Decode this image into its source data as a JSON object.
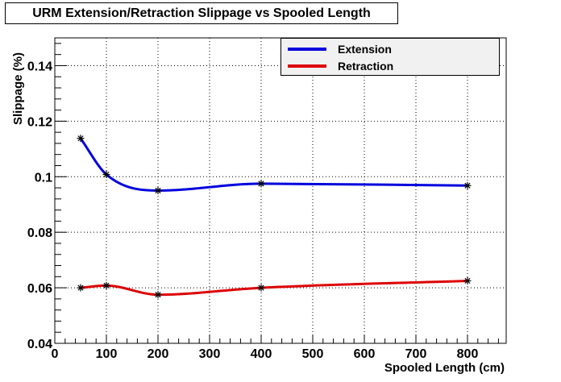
{
  "chart_data": {
    "type": "line",
    "title": "URM Extension/Retraction Slippage vs Spooled Length",
    "xlabel": "Spooled Length (cm)",
    "ylabel": "Slippage (%)",
    "xlim": [
      0,
      875
    ],
    "ylim": [
      0.04,
      0.15
    ],
    "x_ticks": [
      0,
      100,
      200,
      300,
      400,
      500,
      600,
      700,
      800
    ],
    "x_tick_labels": [
      "0",
      "100",
      "200",
      "300",
      "400",
      "500",
      "600",
      "700",
      "800"
    ],
    "y_ticks": [
      0.04,
      0.06,
      0.08,
      0.1,
      0.12,
      0.14
    ],
    "y_tick_labels": [
      "0.04",
      "0.06",
      "0.08",
      "0.1",
      "0.12",
      "0.14"
    ],
    "grid": true,
    "legend_position": "top-right",
    "series": [
      {
        "name": "Extension",
        "color": "#0000dd",
        "x": [
          50,
          100,
          200,
          400,
          800
        ],
        "y": [
          0.1138,
          0.1008,
          0.095,
          0.0975,
          0.0968
        ]
      },
      {
        "name": "Retraction",
        "color": "#dd0000",
        "x": [
          50,
          100,
          200,
          400,
          800
        ],
        "y": [
          0.06,
          0.0608,
          0.0575,
          0.06,
          0.0625
        ]
      }
    ]
  }
}
